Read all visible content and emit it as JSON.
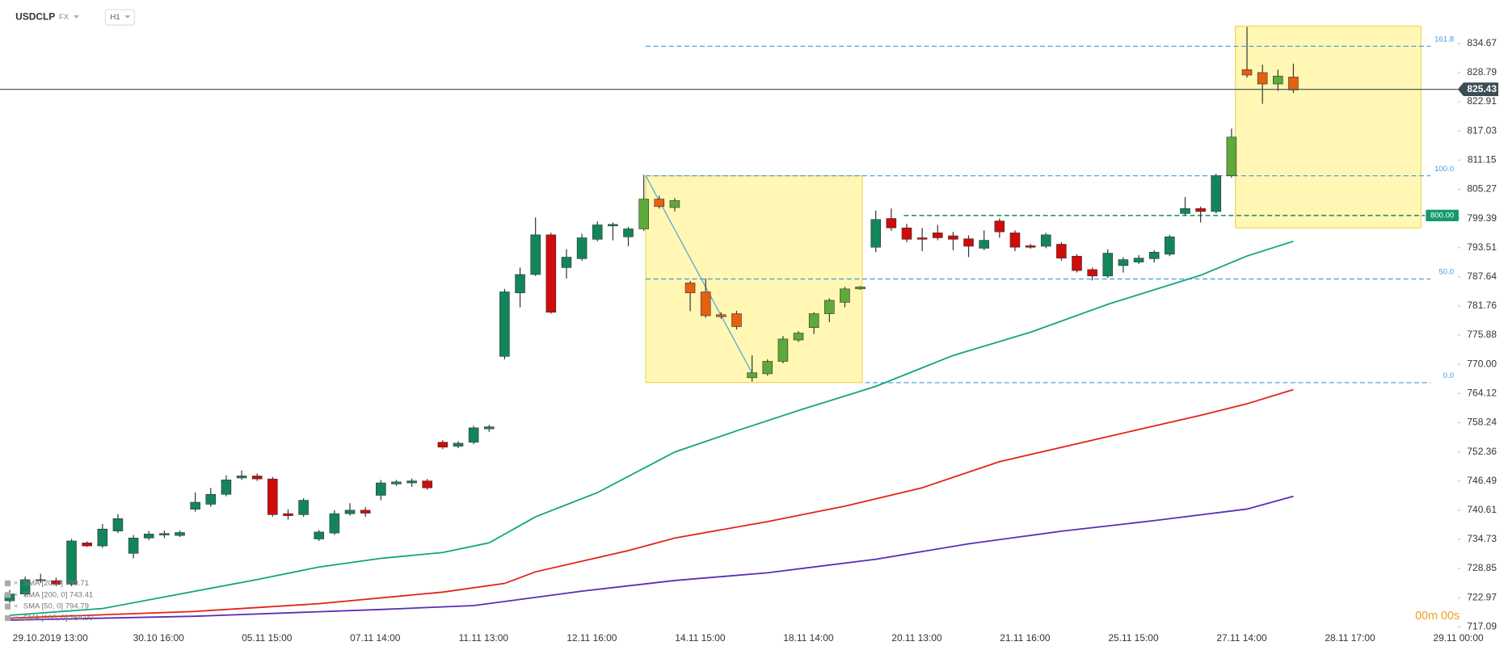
{
  "chart_data": {
    "type": "candlestick",
    "symbol": "USDCLP",
    "market": "FX",
    "interval": "H1",
    "timer": "00m 00s",
    "up_color": "#12855a",
    "down_color": "#d10a0a",
    "highlight_up_color": "#5fa83a",
    "highlight_down_color": "#e5600f",
    "open": [
      722.34,
      723.7,
      726.4,
      726.4,
      725.7,
      734.0,
      733.4,
      736.4,
      731.9,
      735.0,
      735.6,
      735.5,
      740.8,
      741.8,
      743.8,
      747.1,
      747.5,
      746.9,
      739.9,
      739.7,
      734.8,
      736.0,
      739.9,
      740.6,
      743.6,
      745.9,
      746.1,
      746.5,
      754.3,
      753.5,
      754.3,
      757.0,
      771.6,
      784.4,
      788.1,
      796.1,
      789.5,
      791.3,
      795.2,
      797.9,
      795.7,
      797.3,
      803.3,
      801.6,
      786.4,
      784.6,
      780.0,
      780.2,
      767.3,
      768.1,
      770.6,
      774.9,
      777.4,
      780.2,
      782.5,
      785.2,
      793.6,
      799.4,
      797.5,
      795.5,
      796.5,
      795.9,
      795.3,
      793.4,
      798.9,
      796.5,
      793.9,
      793.8,
      794.2,
      791.8,
      789.1,
      787.8,
      789.9,
      790.6,
      791.3,
      792.2,
      800.4,
      801.4,
      800.8,
      808.0,
      829.4,
      828.8,
      826.5,
      827.9
    ],
    "high": [
      724.5,
      727.2,
      727.8,
      727.0,
      734.8,
      734.3,
      737.8,
      739.8,
      735.6,
      736.4,
      736.5,
      736.5,
      744.2,
      745.1,
      747.6,
      748.6,
      748.0,
      747.3,
      740.8,
      743.0,
      736.6,
      740.6,
      742.0,
      741.2,
      746.7,
      746.7,
      747.0,
      746.9,
      754.7,
      754.5,
      757.6,
      757.8,
      785.2,
      789.5,
      799.6,
      796.5,
      793.2,
      796.3,
      798.8,
      798.6,
      797.7,
      808.2,
      804.0,
      803.5,
      786.8,
      787.3,
      780.5,
      780.8,
      771.8,
      771.0,
      775.7,
      776.7,
      780.5,
      783.3,
      785.6,
      785.8,
      801.0,
      801.4,
      798.3,
      797.5,
      798.1,
      796.7,
      796.0,
      797.0,
      799.4,
      797.0,
      794.3,
      796.5,
      794.6,
      792.2,
      789.5,
      793.2,
      791.6,
      792.0,
      793.0,
      796.1,
      803.7,
      801.8,
      808.4,
      817.5,
      838.0,
      830.4,
      829.4,
      830.6
    ],
    "low": [
      721.9,
      723.3,
      725.9,
      725.3,
      725.3,
      733.2,
      733.0,
      736.0,
      730.9,
      734.6,
      735.0,
      735.2,
      740.3,
      741.3,
      743.4,
      746.7,
      746.5,
      739.3,
      738.7,
      739.3,
      734.4,
      735.6,
      739.5,
      739.3,
      742.6,
      745.5,
      745.3,
      744.7,
      752.9,
      753.1,
      753.9,
      756.4,
      771.0,
      781.5,
      787.8,
      780.2,
      787.3,
      790.9,
      794.8,
      795.0,
      793.8,
      796.9,
      801.4,
      800.8,
      780.7,
      779.4,
      779.2,
      777.0,
      766.5,
      767.7,
      770.2,
      774.5,
      776.1,
      778.5,
      781.5,
      785.0,
      792.6,
      796.9,
      794.6,
      792.8,
      795.0,
      793.0,
      791.6,
      793.0,
      795.5,
      792.8,
      793.3,
      793.4,
      790.9,
      788.5,
      786.9,
      787.4,
      788.5,
      790.2,
      790.5,
      791.8,
      800.0,
      798.6,
      800.4,
      807.6,
      827.8,
      822.5,
      825.1,
      824.7
    ],
    "close": [
      723.7,
      726.6,
      726.6,
      725.7,
      734.4,
      733.4,
      736.8,
      738.9,
      735.0,
      735.8,
      735.9,
      736.1,
      742.2,
      743.8,
      746.7,
      747.5,
      746.9,
      739.7,
      739.5,
      742.6,
      736.2,
      739.9,
      740.6,
      740.0,
      746.1,
      746.3,
      746.5,
      745.1,
      753.3,
      754.1,
      757.2,
      757.4,
      784.6,
      788.1,
      796.1,
      780.5,
      791.6,
      795.5,
      798.1,
      798.2,
      797.3,
      803.3,
      801.8,
      803.0,
      784.4,
      779.8,
      779.6,
      777.6,
      768.3,
      770.6,
      775.1,
      776.3,
      780.2,
      782.9,
      785.2,
      785.6,
      799.2,
      797.5,
      795.2,
      795.2,
      795.5,
      795.2,
      793.8,
      795.0,
      796.7,
      793.6,
      793.6,
      796.1,
      791.4,
      788.9,
      787.8,
      792.4,
      791.1,
      791.4,
      792.6,
      795.7,
      801.4,
      800.8,
      808.0,
      815.8,
      828.3,
      826.5,
      828.1,
      825.3
    ],
    "series": [
      {
        "name": "SMA [200, 0] 743.41",
        "color": "#5a2db5",
        "x": [
          0,
          12,
          24,
          30,
          37,
          43,
          49,
          56,
          62,
          68,
          74,
          80,
          83
        ],
        "values": [
          718.45,
          719.23,
          720.59,
          721.37,
          724.28,
          726.43,
          727.99,
          730.71,
          733.83,
          736.36,
          738.5,
          740.83,
          743.4
        ]
      },
      {
        "name": "SMA [50, 0] 794.79",
        "color": "#10a57c",
        "x": [
          0,
          6,
          12,
          16,
          20,
          24,
          28,
          31,
          34,
          38,
          43,
          47,
          51,
          56,
          61,
          66,
          71,
          77,
          80,
          83
        ],
        "values": [
          719.42,
          720.78,
          724.28,
          726.62,
          729.15,
          730.9,
          732.07,
          734.02,
          739.27,
          744.14,
          752.32,
          756.6,
          760.69,
          765.56,
          771.79,
          776.46,
          782.1,
          787.95,
          791.83,
          794.8
        ]
      },
      {
        "name": "SMA [100, 0] 764.90",
        "color": "#e2231a",
        "x": [
          0,
          12,
          20,
          28,
          32,
          34,
          40,
          43,
          49,
          54,
          59,
          64,
          71,
          77,
          80,
          83
        ],
        "values": [
          718.84,
          720.2,
          721.76,
          724.09,
          725.84,
          728.18,
          732.46,
          734.99,
          738.3,
          741.42,
          745.12,
          750.38,
          755.43,
          759.72,
          762.05,
          764.9
        ]
      }
    ],
    "extra_indicator": "SMA [20, 0] 799.71",
    "xticks": [
      "29.10.2019 13:00",
      "30.10 16:00",
      "05.11 15:00",
      "07.11 14:00",
      "11.11 13:00",
      "12.11 16:00",
      "14.11 15:00",
      "18.11 14:00",
      "20.11 13:00",
      "21.11 16:00",
      "25.11 15:00",
      "27.11 14:00",
      "28.11 17:00",
      "29.11 00:00"
    ],
    "ylim": [
      716.9,
      843.43
    ],
    "yticks": [
      834.67,
      828.79,
      822.91,
      817.03,
      811.15,
      805.27,
      799.39,
      793.51,
      787.64,
      781.76,
      775.88,
      {
        "value": 770,
        "label": "770.00"
      },
      764.12,
      758.24,
      752.36,
      746.49,
      740.61,
      734.73,
      728.85,
      722.97,
      717.09
    ],
    "last_price": 825.43,
    "level": {
      "value": 800,
      "label": "800.00"
    },
    "fib_levels": [
      {
        "label": "161.8",
        "price": 834.1
      },
      {
        "label": "100.0",
        "price": 808.0
      },
      {
        "label": "50.0",
        "price": 787.2
      },
      {
        "label": "0.0",
        "price": 766.3
      }
    ]
  }
}
